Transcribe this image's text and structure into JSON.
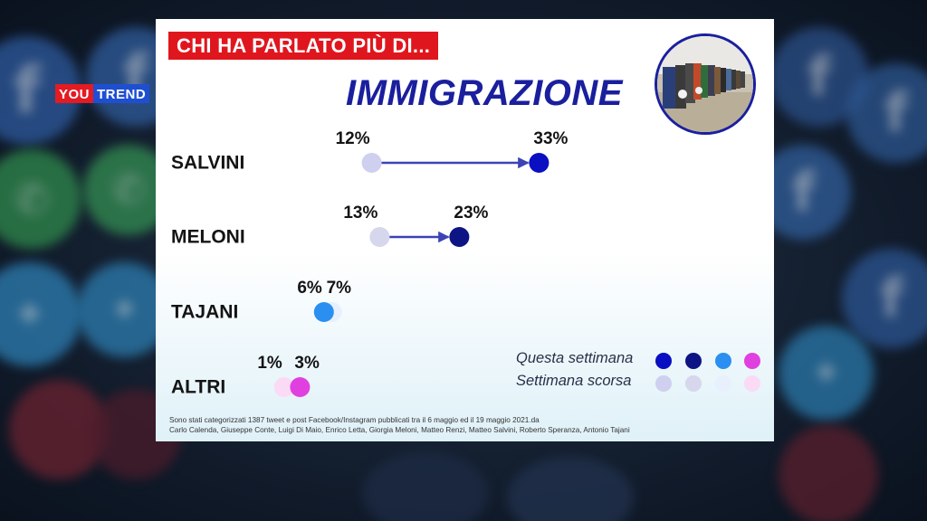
{
  "broadcast": {
    "logo_you": "YOU",
    "logo_trend": "TREND"
  },
  "card": {
    "kicker": "CHI HA PARLATO PIÙ DI...",
    "topic": "IMMIGRAZIONE",
    "footnote_line1": "Sono stati categorizzati 1387 tweet e post Facebook/Instagram pubblicati tra il 6 maggio ed il 19 maggio 2021.da",
    "footnote_line2": "Carlo Calenda, Giuseppe Conte, Luigi Di Maio, Enrico Letta, Giorgia Meloni, Matteo Renzi, Matteo Salvini, Roberto Speranza, Antonio Tajani"
  },
  "legend": {
    "this_week": "Questa settimana",
    "last_week": "Settimana scorsa"
  },
  "colors": {
    "arrow": "#3b43b5",
    "this_week": [
      "#0a0fc2",
      "#0d1484",
      "#2a8ff0",
      "#e040e0"
    ],
    "last_week": [
      "#cfcff0",
      "#d6d6ec",
      "#e7f0fc",
      "#fbdaf6"
    ]
  },
  "chart_data": {
    "type": "dumbbell",
    "unit": "%",
    "categories": [
      "SALVINI",
      "MELONI",
      "TAJANI",
      "ALTRI"
    ],
    "series": [
      {
        "name": "Settimana scorsa",
        "values": [
          12,
          13,
          7,
          1
        ]
      },
      {
        "name": "Questa settimana",
        "values": [
          33,
          23,
          6,
          3
        ]
      }
    ],
    "labels_last_week": [
      "12%",
      "13%",
      "7%",
      "1%"
    ],
    "labels_this_week": [
      "33%",
      "23%",
      "6%",
      "3%"
    ]
  }
}
